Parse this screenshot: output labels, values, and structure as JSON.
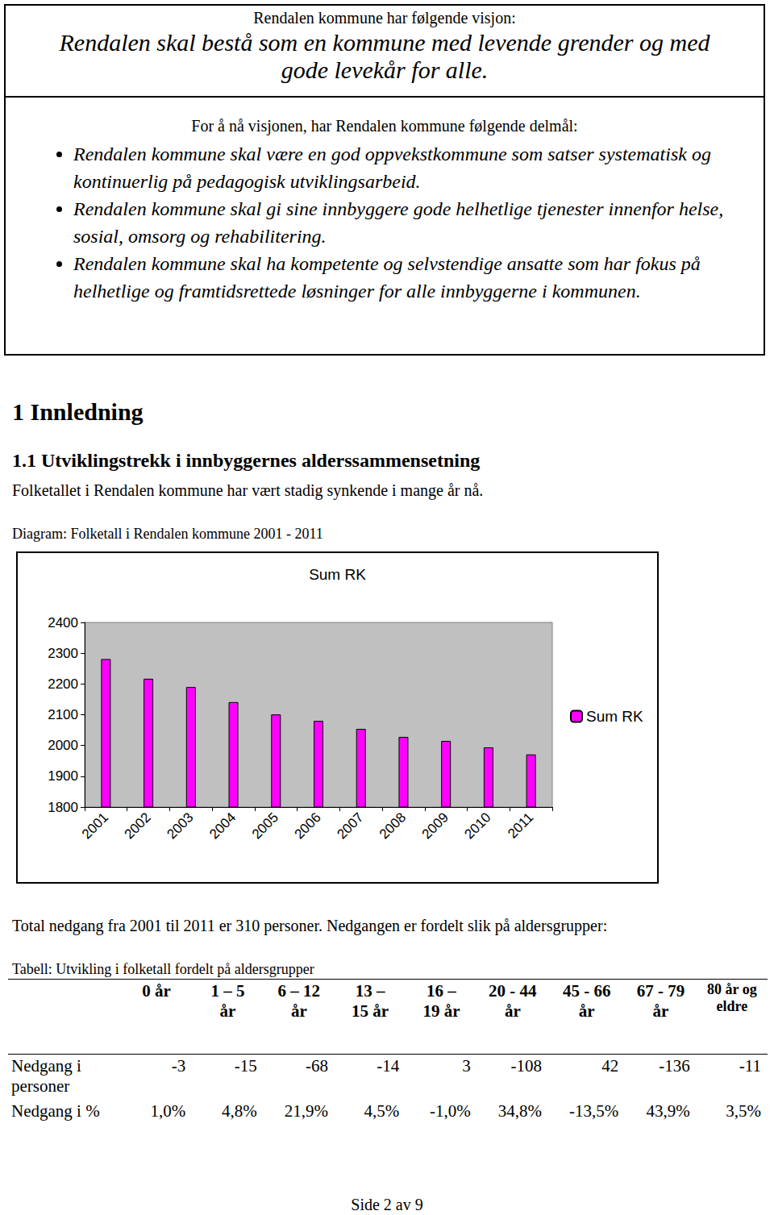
{
  "vision_box": {
    "intro": "Rendalen kommune har følgende visjon:",
    "vision": "Rendalen skal bestå som en kommune med levende grender og med gode levekår for alle.",
    "goals_intro": "For å nå visjonen, har Rendalen kommune følgende delmål:",
    "goals": [
      "Rendalen kommune skal være en god oppvekstkommune som satser systematisk og kontinuerlig på pedagogisk utviklingsarbeid.",
      "Rendalen kommune skal gi sine innbyggere gode helhetlige tjenester innenfor helse, sosial, omsorg og rehabilitering.",
      "Rendalen kommune skal ha kompetente og selvstendige ansatte som har fokus på helhetlige og framtidsrettede løsninger for alle innbyggerne i kommunen."
    ]
  },
  "heading": "1 Innledning",
  "subheading": "1.1 Utviklingstrekk i innbyggernes alderssammensetning",
  "paragraph": "Folketallet i Rendalen kommune har vært stadig synkende i mange år nå.",
  "chart_caption": "Diagram: Folketall i Rendalen kommune 2001 - 2011",
  "chart_data": {
    "type": "bar",
    "title": "Sum RK",
    "categories": [
      "2001",
      "2002",
      "2003",
      "2004",
      "2005",
      "2006",
      "2007",
      "2008",
      "2009",
      "2010",
      "2011"
    ],
    "series": [
      {
        "name": "Sum RK",
        "color": "#ff00ff",
        "values": [
          2281,
          2217,
          2190,
          2141,
          2101,
          2080,
          2054,
          2028,
          2015,
          1994,
          1971
        ]
      }
    ],
    "ylim": [
      1800,
      2400
    ],
    "yticks": [
      1800,
      1900,
      2000,
      2100,
      2200,
      2300,
      2400
    ],
    "grid": false,
    "legend": "right"
  },
  "after_chart": "Total nedgang fra 2001 til 2011 er 310 personer. Nedgangen er fordelt slik på aldersgrupper:",
  "table": {
    "caption": "Tabell: Utvikling i folketall fordelt på aldersgrupper",
    "header": [
      "",
      "0 år",
      "1 – 5 år",
      "6 – 12 år",
      "13 – 15 år",
      "16 – 19 år",
      "20 - 44 år",
      "45 - 66 år",
      "67 - 79 år",
      "80 år og eldre"
    ],
    "rows": [
      [
        "Nedgang i personer",
        "-3",
        "-15",
        "-68",
        "-14",
        "3",
        "-108",
        "42",
        "-136",
        "-11"
      ],
      [
        "Nedgang i %",
        "1,0%",
        "4,8%",
        "21,9%",
        "4,5%",
        "-1,0%",
        "34,8%",
        "-13,5%",
        "43,9%",
        "3,5%"
      ]
    ]
  },
  "footer": "Side 2 av 9"
}
